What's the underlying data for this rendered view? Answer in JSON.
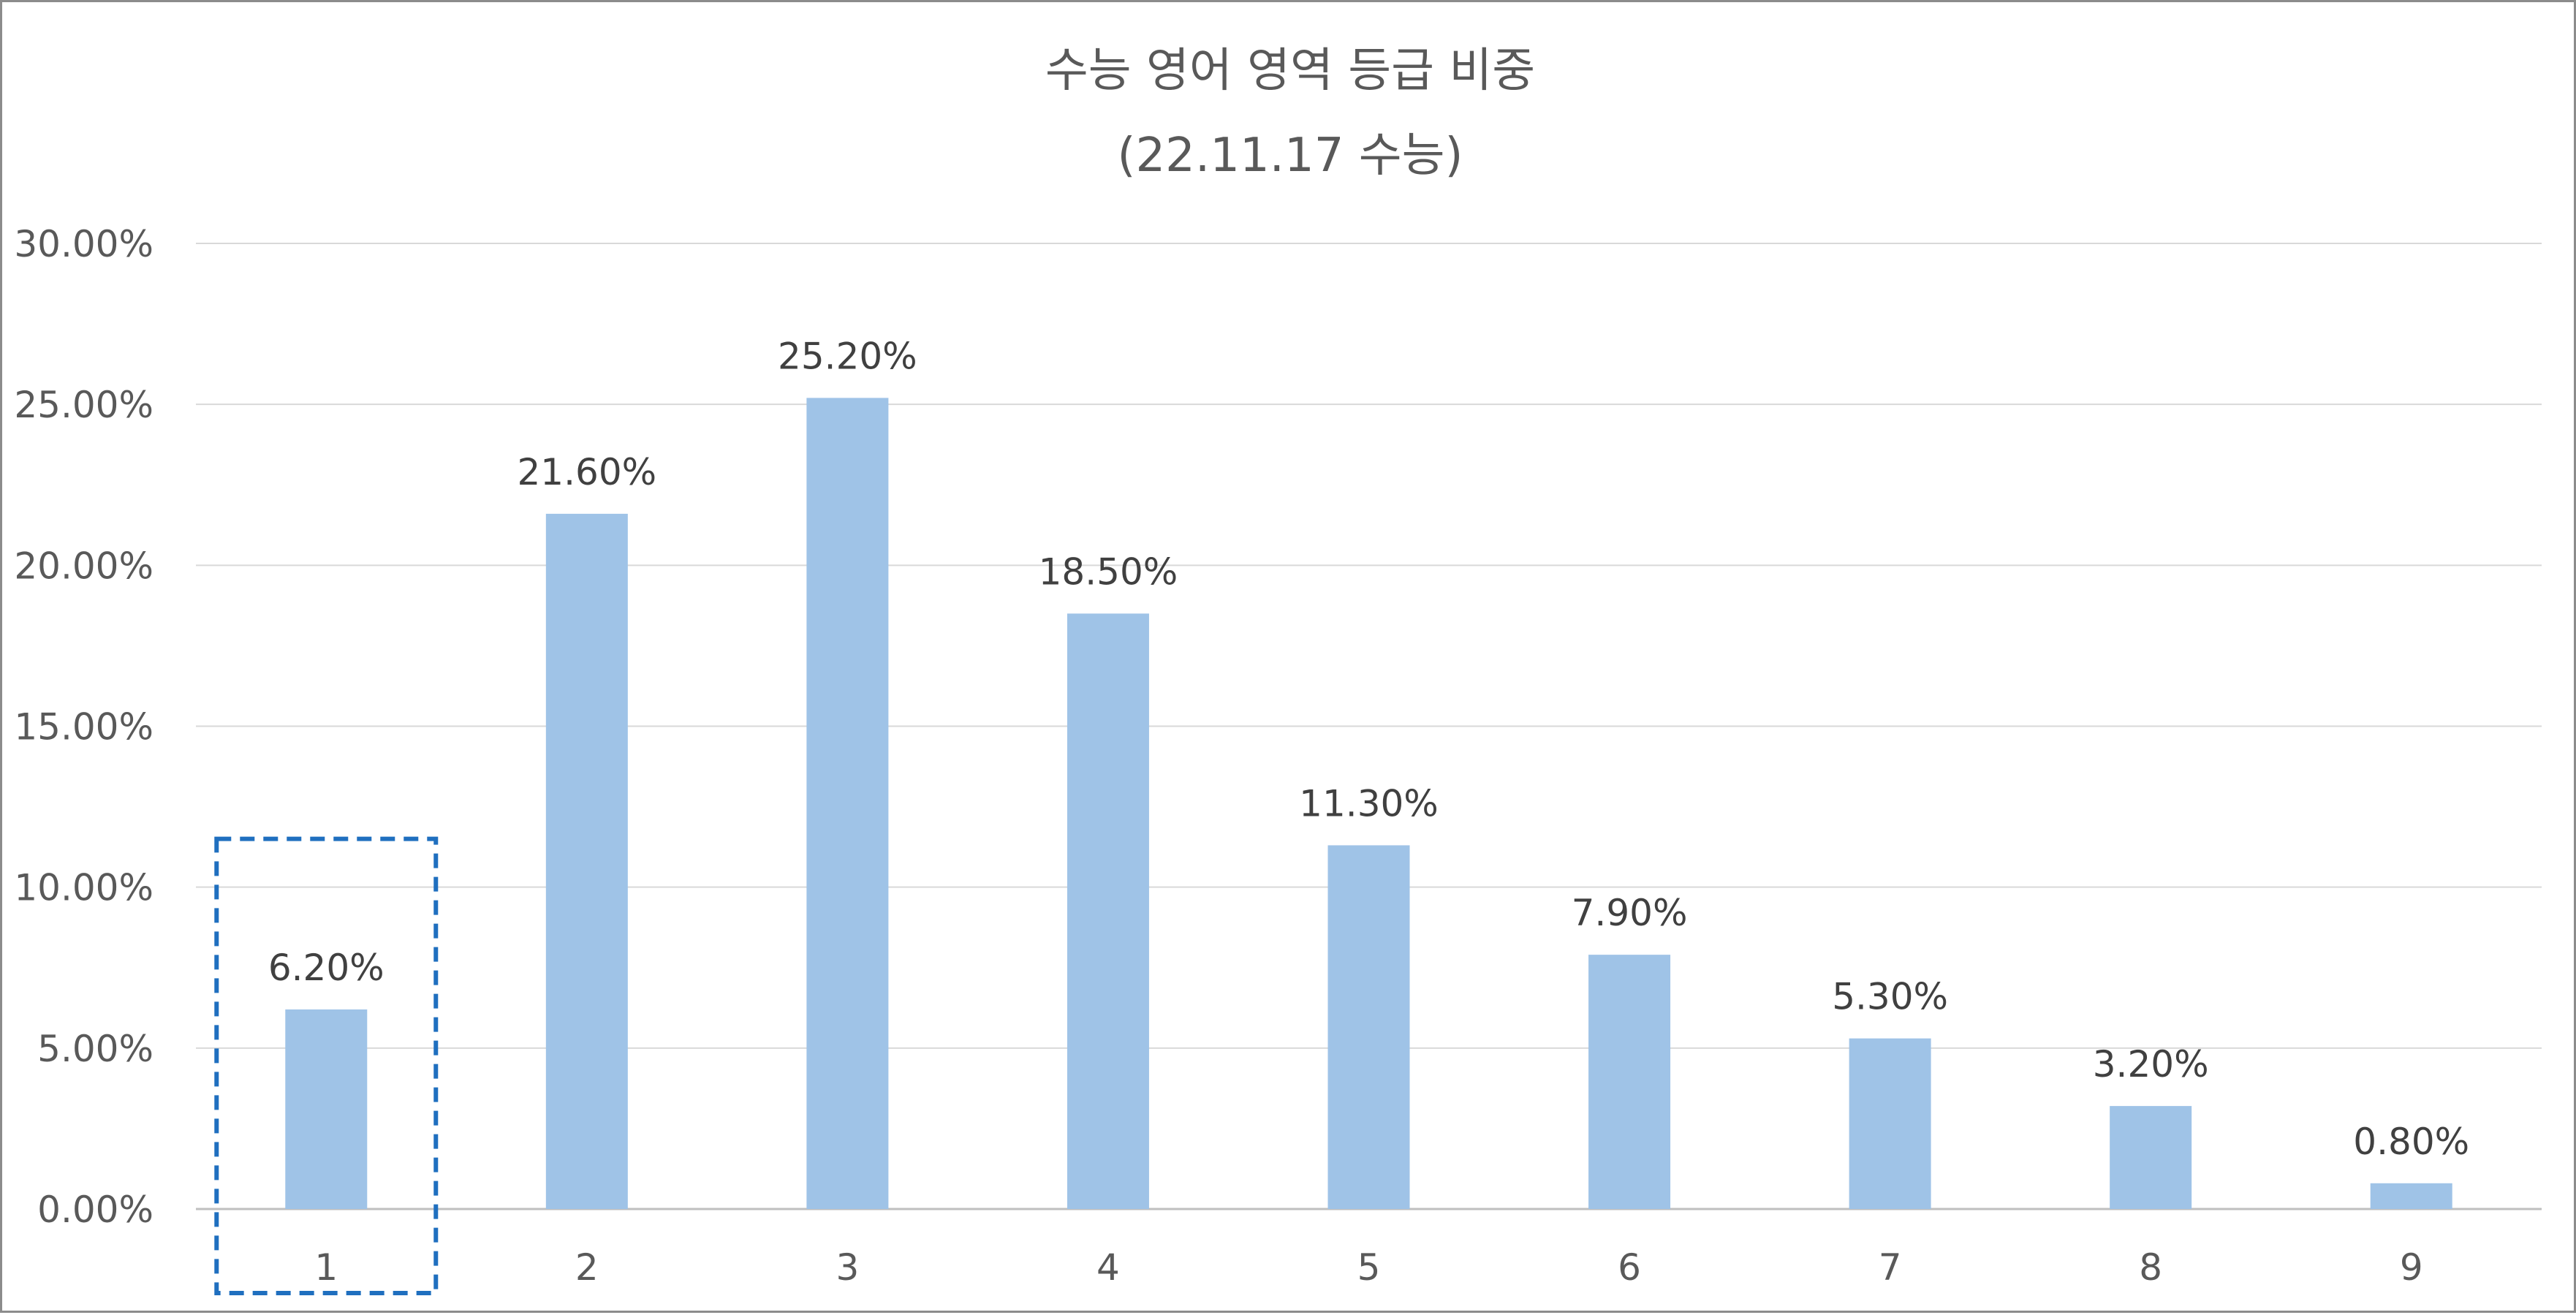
{
  "chart_data": {
    "type": "bar",
    "title": "수능 영어 영역 등급 비중",
    "subtitle": "(22.11.17 수능)",
    "categories": [
      "1",
      "2",
      "3",
      "4",
      "5",
      "6",
      "7",
      "8",
      "9"
    ],
    "values": [
      6.2,
      21.6,
      25.2,
      18.5,
      11.3,
      7.9,
      5.3,
      3.2,
      0.8
    ],
    "data_labels": [
      "6.20%",
      "21.60%",
      "25.20%",
      "18.50%",
      "11.30%",
      "7.90%",
      "5.30%",
      "3.20%",
      "0.80%"
    ],
    "y_ticks": [
      0,
      5,
      10,
      15,
      20,
      25,
      30
    ],
    "y_tick_labels": [
      "0.00%",
      "5.00%",
      "10.00%",
      "15.00%",
      "20.00%",
      "25.00%",
      "30.00%"
    ],
    "ylim": [
      0,
      30
    ],
    "grid": true,
    "legend": "none",
    "highlighted_category": "1",
    "colors": {
      "bar": "#9fc3e7",
      "grid": "#d9d9d9",
      "axis": "#bfbfbf",
      "highlight_box": "#1f6fbf",
      "text": "#595959"
    }
  }
}
